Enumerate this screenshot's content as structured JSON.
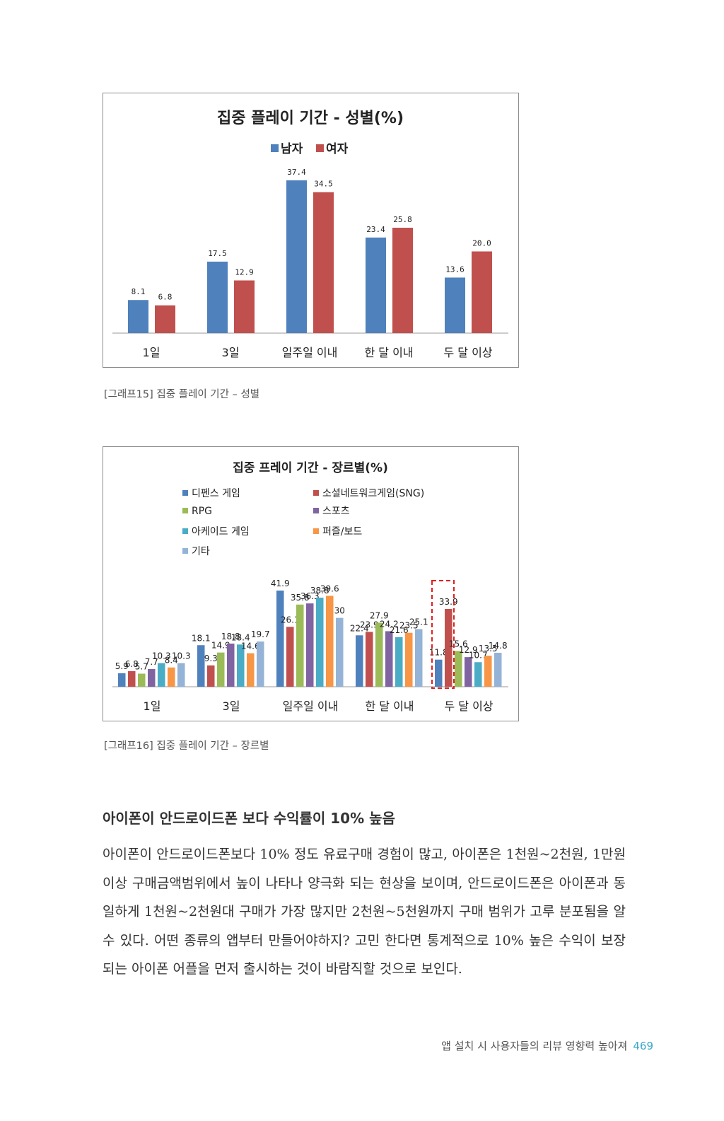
{
  "chart_data": [
    {
      "type": "bar",
      "title": "집중 플레이 기간 - 성별(%)",
      "categories": [
        "1일",
        "3일",
        "일주일 이내",
        "한 달 이내",
        "두 달 이상"
      ],
      "series": [
        {
          "name": "남자",
          "color": "#4f81bd",
          "values": [
            8.1,
            17.5,
            37.4,
            23.4,
            13.6
          ]
        },
        {
          "name": "여자",
          "color": "#c0504d",
          "values": [
            6.8,
            12.9,
            34.5,
            25.8,
            20.0
          ]
        }
      ],
      "value_labels": [
        [
          "8.1",
          "17.5",
          "37.4",
          "23.4",
          "13.6"
        ],
        [
          "6.8",
          "12.9",
          "34.5",
          "25.8",
          "20.0"
        ]
      ],
      "ylim": [
        0,
        40
      ],
      "legend_position": "top",
      "grid": false
    },
    {
      "type": "bar",
      "title": "집중 프레이 기간 - 장르별(%)",
      "categories": [
        "1일",
        "3일",
        "일주일 이내",
        "한 달 이내",
        "두 달 이상"
      ],
      "series": [
        {
          "name": "디펜스 게임",
          "color": "#4f81bd",
          "values": [
            5.9,
            18.1,
            41.9,
            22.4,
            11.8
          ]
        },
        {
          "name": "소셜네트워크게임(SNG)",
          "color": "#c0504d",
          "values": [
            6.8,
            9.3,
            26.1,
            23.9,
            33.9
          ]
        },
        {
          "name": "RPG",
          "color": "#9bbb59",
          "values": [
            5.7,
            14.9,
            35.8,
            27.9,
            15.6
          ]
        },
        {
          "name": "스포츠",
          "color": "#8064a2",
          "values": [
            7.7,
            18.8,
            36.3,
            24.2,
            12.9
          ]
        },
        {
          "name": "아케이드 게임",
          "color": "#4bacc6",
          "values": [
            10.3,
            18.4,
            38.8,
            21.6,
            10.7
          ]
        },
        {
          "name": "퍼즐/보드",
          "color": "#f79646",
          "values": [
            8.4,
            14.6,
            39.6,
            23.5,
            13.5
          ]
        },
        {
          "name": "기타",
          "color": "#95b3d7",
          "values": [
            10.3,
            19.7,
            30.0,
            25.1,
            14.8
          ]
        }
      ],
      "ylim": [
        0,
        45
      ],
      "legend_position": "top-left",
      "grid": false,
      "highlight_category": "두 달 이상"
    }
  ],
  "captions": {
    "graph15": "[그래프15] 집중 플레이 기간 – 성별",
    "graph16": "[그래프16] 집중 플레이 기간 – 장르별"
  },
  "section_title": "아이폰이 안드로이드폰 보다 수익률이 10% 높음",
  "body_text": "아이폰이 안드로이드폰보다 10% 정도 유료구매 경험이 많고, 아이폰은 1천원~2천원, 1만원이상 구매금액범위에서 높이 나타나 양극화 되는 현상을 보이며, 안드로이드폰은 아이폰과 동일하게 1천원~2천원대 구매가 가장 많지만 2천원~5천원까지 구매 범위가 고루 분포됨을 알 수 있다. 어떤 종류의 앱부터 만들어야하지? 고민 한다면 통계적으로 10% 높은 수익이 보장되는 아이폰 어플을 먼저 출시하는 것이 바람직할 것으로 보인다.",
  "footer": {
    "text": "앱 설치 시 사용자들의 리뷰 영향력 높아져",
    "page_number": "469"
  }
}
